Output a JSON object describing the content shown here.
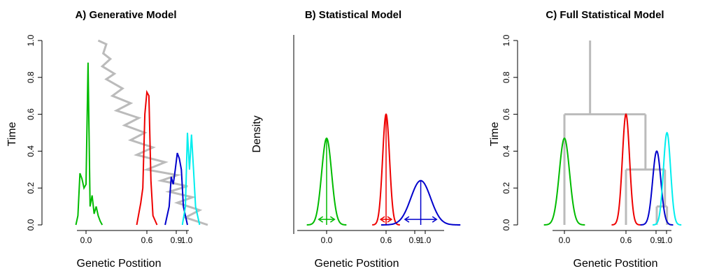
{
  "chart_data": [
    {
      "type": "line",
      "title": "A) Generative Model",
      "xlabel": "Genetic Postition",
      "ylabel": "Time",
      "x_ticks": [
        "0.0",
        "0.6",
        "0.9",
        "1.0"
      ],
      "y_ticks": [
        "0.0",
        "0.2",
        "0.4",
        "0.6",
        "0.8",
        "1.0"
      ],
      "xlim": [
        -0.35,
        1.2
      ],
      "ylim": [
        0,
        1.0
      ],
      "colors": {
        "green": "#00bb00",
        "red": "#ee0000",
        "blue": "#0000cc",
        "cyan": "#00eeee",
        "gray": "#bbbbbb"
      },
      "gray_path": {
        "x": [
          0.12,
          0.2,
          0.17,
          0.24,
          0.16,
          0.28,
          0.2,
          0.36,
          0.26,
          0.44,
          0.3,
          0.52,
          0.38,
          0.58,
          0.44,
          0.66,
          0.5,
          0.78,
          0.6,
          0.9,
          0.74,
          1.0,
          0.82,
          1.05,
          0.9,
          1.12,
          0.98,
          1.2
        ],
        "y": [
          1.0,
          0.98,
          0.93,
          0.9,
          0.86,
          0.82,
          0.79,
          0.74,
          0.7,
          0.66,
          0.62,
          0.58,
          0.54,
          0.5,
          0.46,
          0.42,
          0.38,
          0.34,
          0.3,
          0.27,
          0.24,
          0.21,
          0.18,
          0.15,
          0.12,
          0.08,
          0.04,
          0.0
        ]
      },
      "series": [
        {
          "color": "#00bb00",
          "x": [
            -0.1,
            -0.08,
            -0.06,
            -0.04,
            -0.02,
            0.0,
            0.02,
            0.04,
            0.06,
            0.08,
            0.1,
            0.12,
            0.14,
            0.16
          ],
          "y": [
            0.0,
            0.05,
            0.28,
            0.25,
            0.2,
            0.22,
            0.88,
            0.1,
            0.16,
            0.06,
            0.1,
            0.05,
            0.02,
            0.0
          ]
        },
        {
          "color": "#ee0000",
          "x": [
            0.5,
            0.54,
            0.56,
            0.58,
            0.6,
            0.62,
            0.64,
            0.66,
            0.7
          ],
          "y": [
            0.0,
            0.12,
            0.2,
            0.6,
            0.72,
            0.7,
            0.24,
            0.05,
            0.0
          ]
        },
        {
          "color": "#0000cc",
          "x": [
            0.78,
            0.82,
            0.84,
            0.86,
            0.88,
            0.9,
            0.92,
            0.94,
            0.96,
            1.0
          ],
          "y": [
            0.0,
            0.1,
            0.26,
            0.22,
            0.3,
            0.39,
            0.36,
            0.3,
            0.1,
            0.0
          ]
        },
        {
          "color": "#00eeee",
          "x": [
            0.95,
            0.98,
            1.0,
            1.02,
            1.04,
            1.06,
            1.08,
            1.12
          ],
          "y": [
            0.0,
            0.1,
            0.5,
            0.3,
            0.49,
            0.3,
            0.1,
            0.0
          ]
        }
      ]
    },
    {
      "type": "line",
      "title": "B) Statistical Model",
      "xlabel": "Genetic Postition",
      "ylabel": "Density",
      "x_ticks": [
        "0.0",
        "0.6",
        "0.9",
        "1.0"
      ],
      "xlim": [
        -0.35,
        1.2
      ],
      "ylim": [
        0,
        1.0
      ],
      "series": [
        {
          "color": "#00bb00",
          "mean": 0.0,
          "sd": 0.05,
          "peak": 0.47
        },
        {
          "color": "#ee0000",
          "mean": 0.6,
          "sd": 0.035,
          "peak": 0.6
        },
        {
          "color": "#0000cc",
          "mean": 0.95,
          "sd": 0.1,
          "peak": 0.24
        }
      ]
    },
    {
      "type": "line",
      "title": "C) Full Statistical Model",
      "xlabel": "Genetic Postition",
      "ylabel": "Time",
      "x_ticks": [
        "0.0",
        "0.6",
        "0.9",
        "1.0"
      ],
      "y_ticks": [
        "0.0",
        "0.2",
        "0.4",
        "0.6",
        "0.8",
        "1.0"
      ],
      "xlim": [
        -0.35,
        1.2
      ],
      "ylim": [
        0,
        1.0
      ],
      "tree": {
        "root_x": 0.25,
        "root_top": 1.0,
        "root_split": 0.6,
        "left_x": 0.0,
        "right_x": 0.79,
        "right_split": 0.3,
        "right_left_x": 0.6,
        "right_right_x": 0.98,
        "rr_split": 0.1,
        "rr_left_x": 0.9,
        "rr_right_x": 1.0
      },
      "series": [
        {
          "color": "#00bb00",
          "mean": 0.0,
          "sd": 0.05,
          "peak": 0.47
        },
        {
          "color": "#ee0000",
          "mean": 0.6,
          "sd": 0.035,
          "peak": 0.6
        },
        {
          "color": "#0000cc",
          "mean": 0.9,
          "sd": 0.04,
          "peak": 0.4
        },
        {
          "color": "#00eeee",
          "mean": 1.0,
          "sd": 0.035,
          "peak": 0.5
        }
      ]
    }
  ]
}
